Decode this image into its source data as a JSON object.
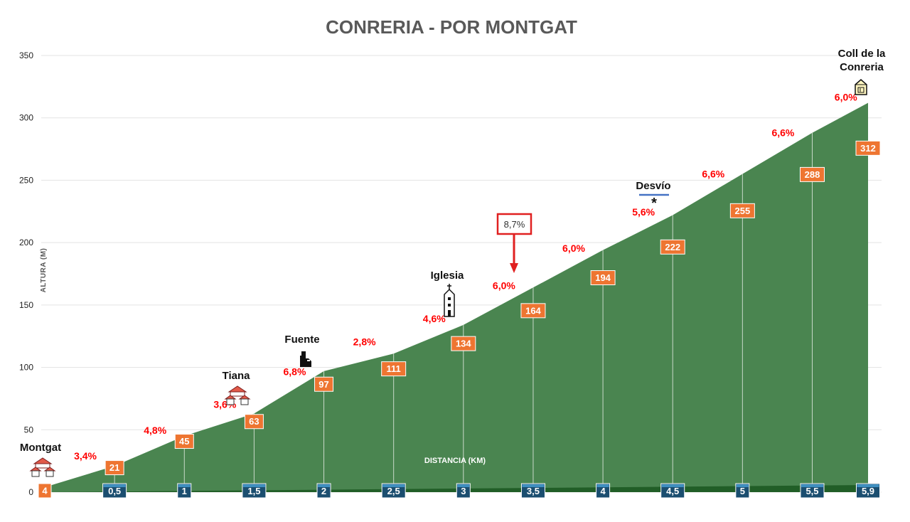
{
  "chart_data": {
    "type": "area",
    "title": "CONRERIA - POR MONTGAT",
    "ylabel": "ALTURA (M)",
    "xlabel": "DISTANCIA (KM)",
    "ylim": [
      0,
      350
    ],
    "yticks": [
      "0",
      "50",
      "100",
      "150",
      "200",
      "250",
      "300",
      "350"
    ],
    "x": [
      0,
      0.5,
      1,
      1.5,
      2,
      2.5,
      3,
      3.5,
      4,
      4.5,
      5,
      5.5,
      5.9
    ],
    "distance_labels": [
      "0,5",
      "1",
      "1,5",
      "2",
      "2,5",
      "3",
      "3,5",
      "4",
      "4,5",
      "5",
      "5,5",
      "5,9"
    ],
    "elevations": [
      4,
      21,
      45,
      63,
      97,
      111,
      134,
      164,
      194,
      222,
      255,
      288,
      312
    ],
    "grades": [
      "3,4%",
      "4,8%",
      "3,6%",
      "6,8%",
      "2,8%",
      "4,6%",
      "6,0%",
      "6,0%",
      "5,6%",
      "6,6%",
      "6,6%",
      "6,0%"
    ],
    "places": {
      "montgat": "Montgat",
      "tiana": "Tiana",
      "fuente": "Fuente",
      "iglesia": "Iglesia",
      "desvio": "Desvío",
      "coll_line1": "Coll de la",
      "coll_line2": "Conreria"
    },
    "max_grade_label": "8,7%",
    "desvio_marker": "*",
    "colors": {
      "area": "#4a8550",
      "area_base": "#215e27",
      "grade": "#ff0000",
      "elevation_box": "#ee7531",
      "distance_box": "#1b4e70",
      "callout": "#e02020",
      "title": "#595959"
    }
  }
}
